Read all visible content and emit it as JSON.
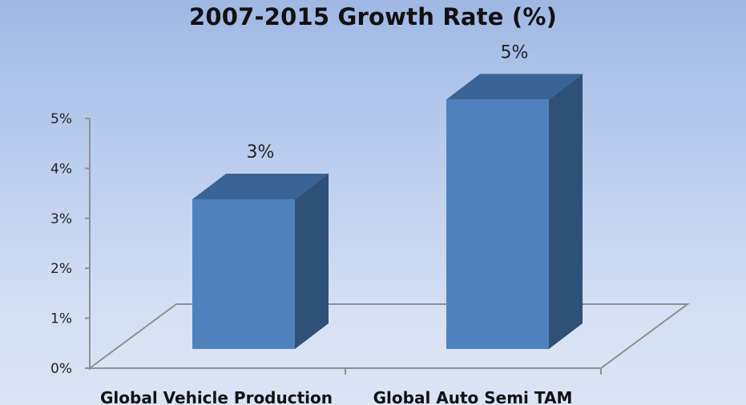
{
  "chart_data": {
    "type": "bar",
    "title": "2007-2015 Growth Rate (%)",
    "categories": [
      "Global Vehicle Production",
      "Global Auto Semi TAM"
    ],
    "values": [
      3,
      5
    ],
    "data_labels": [
      "3%",
      "5%"
    ],
    "y_ticks": [
      "0%",
      "1%",
      "2%",
      "3%",
      "4%",
      "5%"
    ],
    "ylim": [
      0,
      5
    ],
    "grid": false,
    "legend": "none",
    "style": "3d-column",
    "colors": {
      "bar_front": "#4f81bd",
      "bar_top": "#3a6496",
      "bar_side": "#2f5077",
      "floor_line": "#909090"
    }
  }
}
